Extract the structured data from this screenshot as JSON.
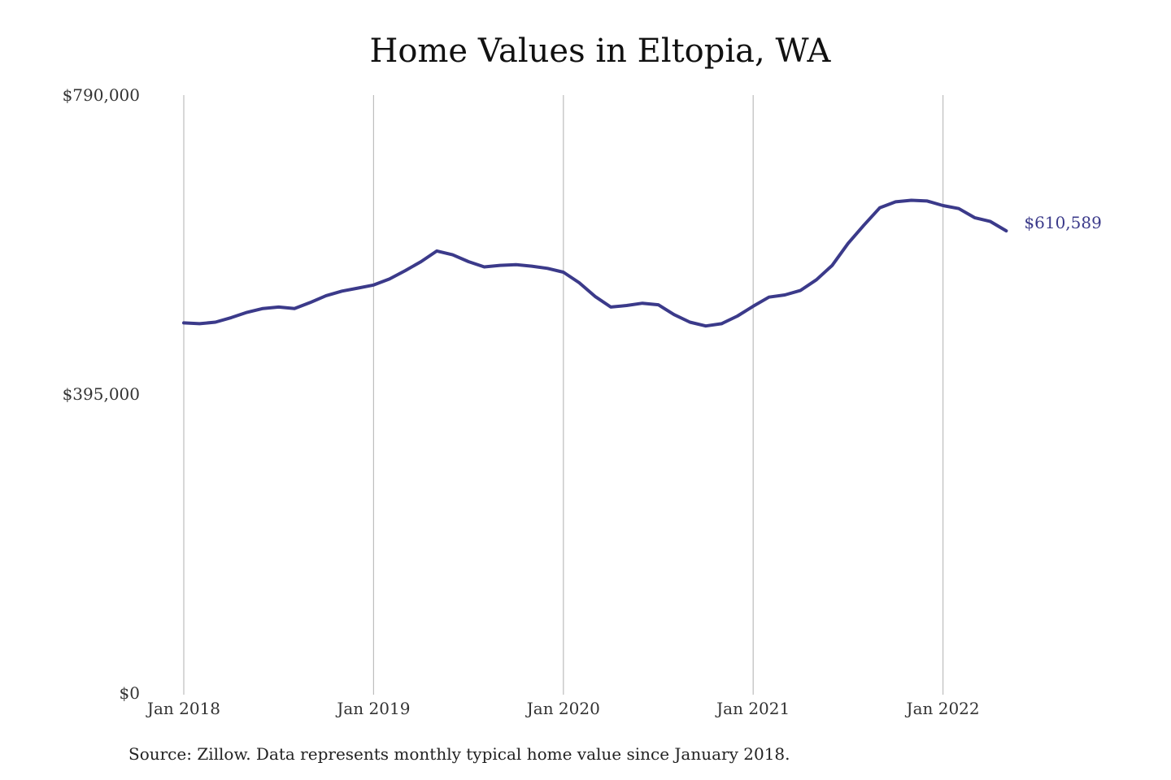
{
  "chart_data": {
    "type": "line",
    "title": "Home Values in Eltopia, WA",
    "xlabel": "",
    "ylabel": "",
    "x_tick_labels": [
      "Jan 2018",
      "Jan 2019",
      "Jan 2020",
      "Jan 2021",
      "Jan 2022"
    ],
    "y_tick_labels": [
      "$790,000",
      "$395,000",
      "$0"
    ],
    "y_ticks": [
      790000,
      395000,
      0
    ],
    "ylim": [
      0,
      790000
    ],
    "x_range": [
      "2018-01",
      "2022-05"
    ],
    "grid": "vertical lines at each January",
    "end_label": "$610,589",
    "line_color": "#3b3a8a",
    "series": [
      {
        "x": [
          "2018-01",
          "2018-02",
          "2018-03",
          "2018-04",
          "2018-05",
          "2018-06",
          "2018-07",
          "2018-08",
          "2018-09",
          "2018-10",
          "2018-11",
          "2018-12",
          "2019-01",
          "2019-02",
          "2019-03",
          "2019-04",
          "2019-05",
          "2019-06",
          "2019-07",
          "2019-08",
          "2019-09",
          "2019-10",
          "2019-11",
          "2019-12",
          "2020-01",
          "2020-02",
          "2020-03",
          "2020-04",
          "2020-05",
          "2020-06",
          "2020-07",
          "2020-08",
          "2020-09",
          "2020-10",
          "2020-11",
          "2020-12",
          "2021-01",
          "2021-02",
          "2021-03",
          "2021-04",
          "2021-05",
          "2021-06",
          "2021-07",
          "2021-08",
          "2021-09",
          "2021-10",
          "2021-11",
          "2021-12",
          "2022-01",
          "2022-02",
          "2022-03",
          "2022-04",
          "2022-05"
        ],
        "values": [
          489000,
          488000,
          490000,
          496000,
          503000,
          508000,
          510000,
          508000,
          516000,
          525000,
          531000,
          535000,
          539000,
          547000,
          558000,
          570000,
          584000,
          579000,
          570000,
          563000,
          565000,
          566000,
          564000,
          561000,
          556000,
          542000,
          524000,
          510000,
          512000,
          515000,
          513000,
          500000,
          490000,
          485000,
          488000,
          498000,
          511000,
          523000,
          526000,
          532000,
          546000,
          565000,
          594000,
          618000,
          641000,
          649000,
          651000,
          650000,
          644000,
          640000,
          628000,
          623000,
          610589
        ]
      }
    ]
  },
  "source_note": "Source: Zillow. Data represents monthly typical home value since January 2018."
}
